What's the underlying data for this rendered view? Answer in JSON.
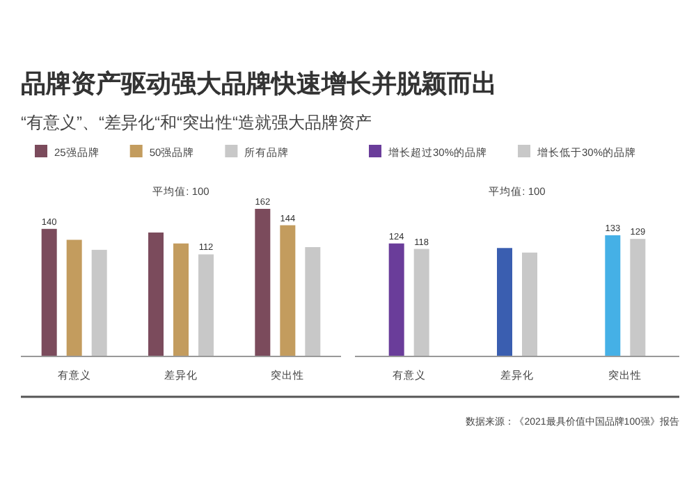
{
  "chart_data": [
    {
      "type": "bar",
      "title": "品牌资产驱动强大品牌快速增长并脱颖而出",
      "subtitle": "“有意义”、“差异化“和“突出性“造就强大品牌资产",
      "annotations": [
        "平均值: 100"
      ],
      "legend": "top",
      "categories": [
        "有意义",
        "差异化",
        "突出性"
      ],
      "series": [
        {
          "name": "25强品牌",
          "color": "#7b4b5c",
          "values": [
            140,
            136,
            162
          ],
          "value_labels": [
            "140",
            null,
            "162"
          ]
        },
        {
          "name": "50强品牌",
          "color": "#c39c5e",
          "values": [
            128,
            124,
            144
          ],
          "value_labels": [
            null,
            null,
            "144"
          ]
        },
        {
          "name": "所有品牌",
          "color": "#c8c8c8",
          "values": [
            117,
            112,
            120
          ],
          "value_labels": [
            null,
            "112",
            null
          ]
        }
      ]
    },
    {
      "type": "bar",
      "annotations": [
        "平均值: 100",
        "数据来源：《2021最具价值中国品牌100强》报告"
      ],
      "legend": "top",
      "categories": [
        "有意义",
        "差异化",
        "突出性"
      ],
      "series": [
        {
          "name": "增长超过30%的品牌",
          "color": "#6a3d9a",
          "colors": [
            "#6a3d9a",
            "#3a5eb0",
            "#45b0e6"
          ],
          "values": [
            124,
            119,
            133
          ],
          "value_labels": [
            "124",
            null,
            "133"
          ]
        },
        {
          "name": "增长低于30%的品牌",
          "color": "#c8c8c8",
          "values": [
            118,
            114,
            129
          ],
          "value_labels": [
            "118",
            null,
            "129"
          ]
        }
      ]
    }
  ]
}
